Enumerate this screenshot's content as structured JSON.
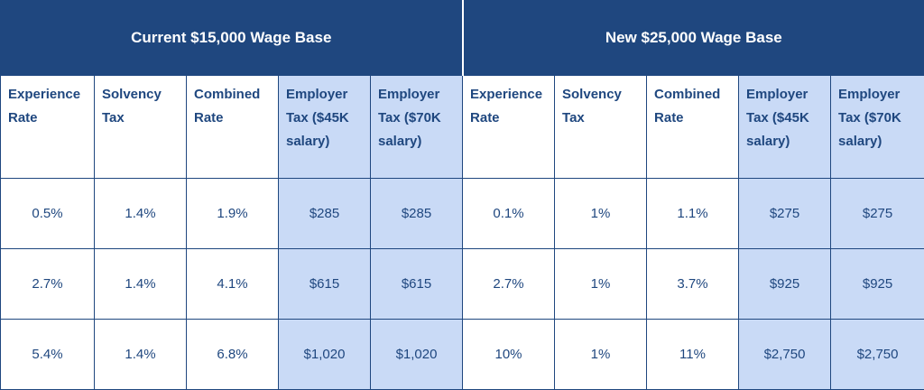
{
  "groups": {
    "current": "Current $15,000 Wage Base",
    "new": "New $25,000 Wage Base"
  },
  "columns": {
    "current": [
      "Experience Rate",
      "Solvency Tax",
      "Combined Rate",
      "Employer Tax ($45K salary)",
      "Employer Tax ($70K salary)"
    ],
    "new": [
      "Experience Rate",
      "Solvency Tax",
      "Combined Rate",
      "Employer Tax ($45K salary)",
      "Employer Tax ($70K salary)"
    ]
  },
  "rows": [
    [
      "0.5%",
      "1.4%",
      "1.9%",
      "$285",
      "$285",
      "0.1%",
      "1%",
      "1.1%",
      "$275",
      "$275"
    ],
    [
      "2.7%",
      "1.4%",
      "4.1%",
      "$615",
      "$615",
      "2.7%",
      "1%",
      "3.7%",
      "$925",
      "$925"
    ],
    [
      "5.4%",
      "1.4%",
      "6.8%",
      "$1,020",
      "$1,020",
      "10%",
      "1%",
      "11%",
      "$2,750",
      "$2,750"
    ]
  ],
  "colors": {
    "header_bg": "#1f477f",
    "text": "#1f477f",
    "shaded_cell": "#c9daf6",
    "background": "#ffffff"
  }
}
